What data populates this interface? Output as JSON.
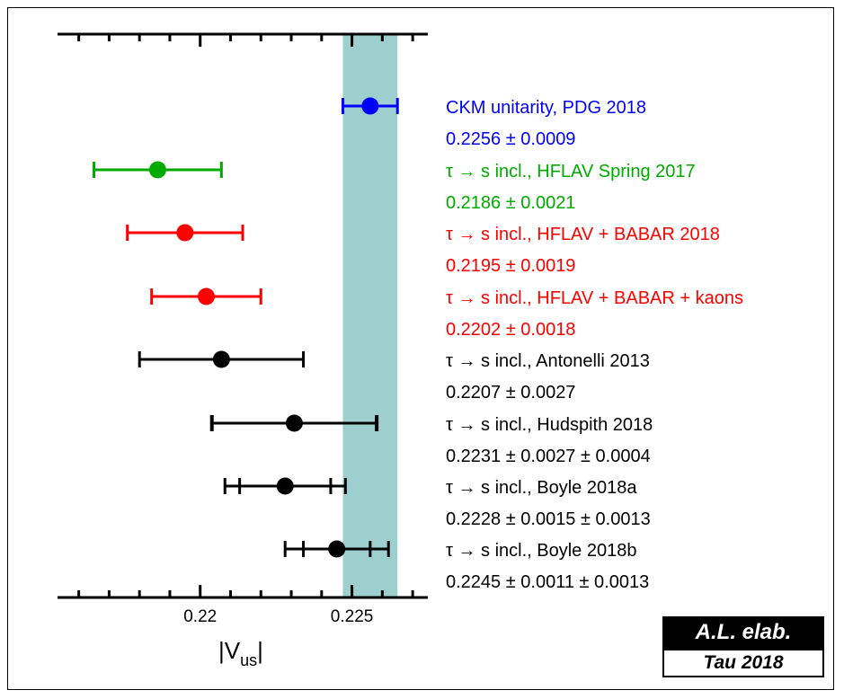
{
  "chart_data": {
    "type": "scatter",
    "xlabel_main": "|V",
    "xlabel_sub": "us",
    "xlabel_end": "|",
    "xlim": [
      0.2153,
      0.2275
    ],
    "xticks": [
      0.22,
      0.225
    ],
    "xtick_labels": [
      "0.22",
      "0.225"
    ],
    "band": {
      "center": 0.2256,
      "err": 0.0009,
      "color": "#9ecfcf"
    },
    "entries": [
      {
        "name": "CKM unitarity, PDG 2018",
        "value_text": "0.2256 ± 0.0009",
        "value": 0.2256,
        "err_stat": 0.0009,
        "err_sys": null,
        "color": "#0000ff"
      },
      {
        "name": "τ → s incl., HFLAV Spring 2017",
        "value_text": "0.2186 ± 0.0021",
        "value": 0.2186,
        "err_stat": 0.0021,
        "err_sys": null,
        "color": "#00aa00"
      },
      {
        "name": "τ → s incl., HFLAV + BABAR 2018",
        "value_text": "0.2195 ± 0.0019",
        "value": 0.2195,
        "err_stat": 0.0019,
        "err_sys": null,
        "color": "#ff0000"
      },
      {
        "name": "τ → s incl., HFLAV + BABAR + kaons",
        "value_text": "0.2202 ± 0.0018",
        "value": 0.2202,
        "err_stat": 0.0018,
        "err_sys": null,
        "color": "#ff0000"
      },
      {
        "name": "τ → s incl., Antonelli 2013",
        "value_text": "0.2207 ± 0.0027",
        "value": 0.2207,
        "err_stat": 0.0027,
        "err_sys": null,
        "color": "#000000"
      },
      {
        "name": "τ → s incl., Hudspith 2018",
        "value_text": "0.2231 ± 0.0027 ± 0.0004",
        "value": 0.2231,
        "err_stat": 0.0027,
        "err_sys": 0.0004,
        "color": "#000000"
      },
      {
        "name": "τ → s incl., Boyle 2018a",
        "value_text": "0.2228 ± 0.0015 ± 0.0013",
        "value": 0.2228,
        "err_stat": 0.0015,
        "err_sys": 0.0013,
        "color": "#000000"
      },
      {
        "name": "τ → s incl., Boyle 2018b",
        "value_text": "0.2245 ± 0.0011 ± 0.0013",
        "value": 0.2245,
        "err_stat": 0.0011,
        "err_sys": 0.0013,
        "color": "#000000"
      }
    ]
  },
  "badge": {
    "line1": "A.L. elab.",
    "line2": "Tau 2018"
  }
}
